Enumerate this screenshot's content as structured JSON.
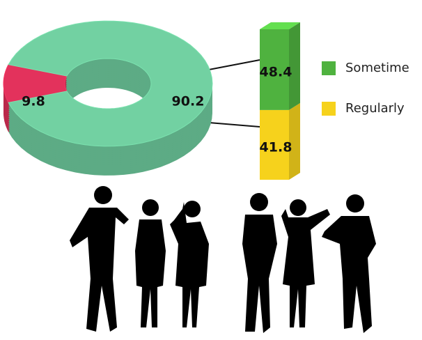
{
  "chart_data": [
    {
      "type": "pie",
      "values": [
        9.8,
        90.2
      ],
      "colors": [
        "#e3325c",
        "#72d1a2"
      ]
    },
    {
      "type": "stacked-bar",
      "series": [
        {
          "name": "Sometime",
          "color": "#4fb23f",
          "values": [
            48.4
          ]
        },
        {
          "name": "Regularly",
          "color": "#f6d21c",
          "values": [
            41.8
          ]
        }
      ]
    }
  ]
}
